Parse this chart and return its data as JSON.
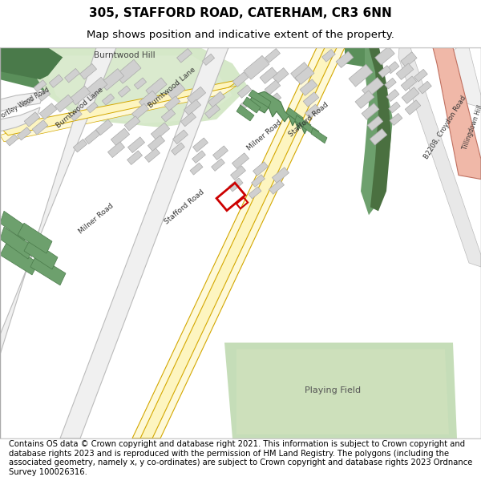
{
  "title_line1": "305, STAFFORD ROAD, CATERHAM, CR3 6NN",
  "title_line2": "Map shows position and indicative extent of the property.",
  "copyright_text": "Contains OS data © Crown copyright and database right 2021. This information is subject to Crown copyright and database rights 2023 and is reproduced with the permission of HM Land Registry. The polygons (including the associated geometry, namely x, y co-ordinates) are subject to Crown copyright and database rights 2023 Ordnance Survey 100026316.",
  "map_bg": "#f8f8f8",
  "road_yellow_fill": "#fdf5c0",
  "road_yellow_edge": "#d4a800",
  "road_yellow_fill2": "#fef9d8",
  "road_pink_fill": "#f0b8a8",
  "road_pink_edge": "#c07060",
  "green_dark": "#5a8f5a",
  "green_mid": "#6da06d",
  "green_light": "#c5ddb8",
  "green_pale": "#d5e8c8",
  "building_gray": "#d0d0d0",
  "building_outline": "#aaaaaa",
  "highlight_red": "#cc0000",
  "title_fontsize": 11,
  "subtitle_fontsize": 9.5,
  "copyright_fontsize": 7.2,
  "map_border": "#aaaaaa"
}
